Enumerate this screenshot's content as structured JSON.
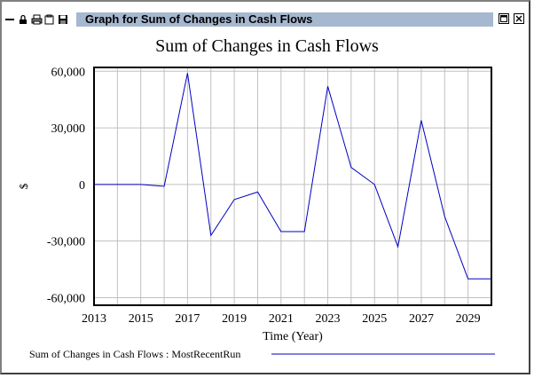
{
  "window": {
    "title": "Graph for Sum of Changes in Cash Flows"
  },
  "toolbar_icons": [
    "minimize-icon",
    "lock-icon",
    "print-icon",
    "copy-icon",
    "save-icon"
  ],
  "chart_data": {
    "type": "line",
    "title": "Sum of Changes in Cash Flows",
    "xlabel": "Time (Year)",
    "ylabel": "$",
    "xlim": [
      2013,
      2030
    ],
    "ylim": [
      -64000,
      62000
    ],
    "xticks": [
      "2013",
      "2015",
      "2017",
      "2019",
      "2021",
      "2023",
      "2025",
      "2027",
      "2029"
    ],
    "yticks": [
      "60,000",
      "30,000",
      "0",
      "-30,000",
      "-60,000"
    ],
    "grid": true,
    "series": [
      {
        "name": "Sum of Changes in Cash Flows : MostRecentRun",
        "color": "#0000c0",
        "x": [
          2013,
          2014,
          2015,
          2016,
          2017,
          2018,
          2019,
          2020,
          2021,
          2022,
          2023,
          2024,
          2025,
          2026,
          2027,
          2028,
          2029,
          2030
        ],
        "y": [
          0,
          0,
          0,
          -1000,
          59000,
          -27000,
          -8000,
          -4000,
          -25000,
          -25000,
          52000,
          9000,
          0,
          -33000,
          34000,
          -17000,
          -50000,
          -50000
        ]
      }
    ],
    "legend": {
      "placement": "bottom",
      "label": "Sum of Changes in Cash Flows : MostRecentRun"
    }
  }
}
